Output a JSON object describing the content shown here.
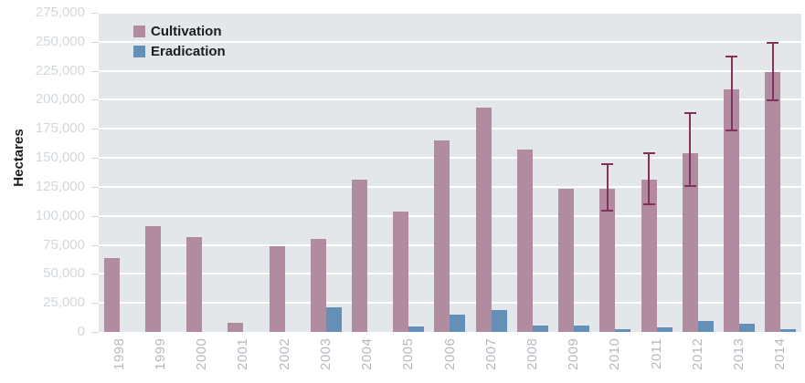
{
  "chart_data": {
    "type": "bar",
    "title": "",
    "ylabel": "Hectares",
    "ylim": [
      0,
      275000
    ],
    "ytick_step": 25000,
    "yticks": [
      {
        "value": 0,
        "label": "0"
      },
      {
        "value": 25000,
        "label": "25,000"
      },
      {
        "value": 50000,
        "label": "50,000"
      },
      {
        "value": 75000,
        "label": "75,000"
      },
      {
        "value": 100000,
        "label": "100,000"
      },
      {
        "value": 125000,
        "label": "125,000"
      },
      {
        "value": 150000,
        "label": "150,000"
      },
      {
        "value": 175000,
        "label": "175,000"
      },
      {
        "value": 200000,
        "label": "200,000"
      },
      {
        "value": 225000,
        "label": "225,000"
      },
      {
        "value": 250000,
        "label": "250,000"
      },
      {
        "value": 275000,
        "label": "275,000"
      }
    ],
    "categories": [
      "1998",
      "1999",
      "2000",
      "2001",
      "2002",
      "2003",
      "2004",
      "2005",
      "2006",
      "2007",
      "2008",
      "2009",
      "2010",
      "2011",
      "2012",
      "2013",
      "2014"
    ],
    "series": [
      {
        "name": "Cultivation",
        "color": "#b18ca1",
        "values": [
          64000,
          91000,
          82000,
          8000,
          74000,
          80000,
          131000,
          104000,
          165000,
          193000,
          157000,
          123000,
          123000,
          131000,
          154000,
          209000,
          224000
        ]
      },
      {
        "name": "Eradication",
        "color": "#6490b7",
        "values": [
          null,
          null,
          null,
          null,
          null,
          21430,
          null,
          5103,
          15300,
          19047,
          5480,
          5351,
          2316,
          3810,
          9672,
          7348,
          2692
        ]
      }
    ],
    "error_bars": {
      "series": "Cultivation",
      "color": "#84305c",
      "low": [
        null,
        null,
        null,
        null,
        null,
        null,
        null,
        null,
        null,
        null,
        null,
        null,
        104000,
        109000,
        125000,
        173000,
        199000
      ],
      "high": [
        null,
        null,
        null,
        null,
        null,
        null,
        null,
        null,
        null,
        null,
        null,
        null,
        145000,
        155000,
        189000,
        238000,
        250000
      ]
    },
    "legend_position": "top-left",
    "grid": true,
    "plot_background": "#e3e7ea",
    "gridline_color": "#ffffff"
  }
}
